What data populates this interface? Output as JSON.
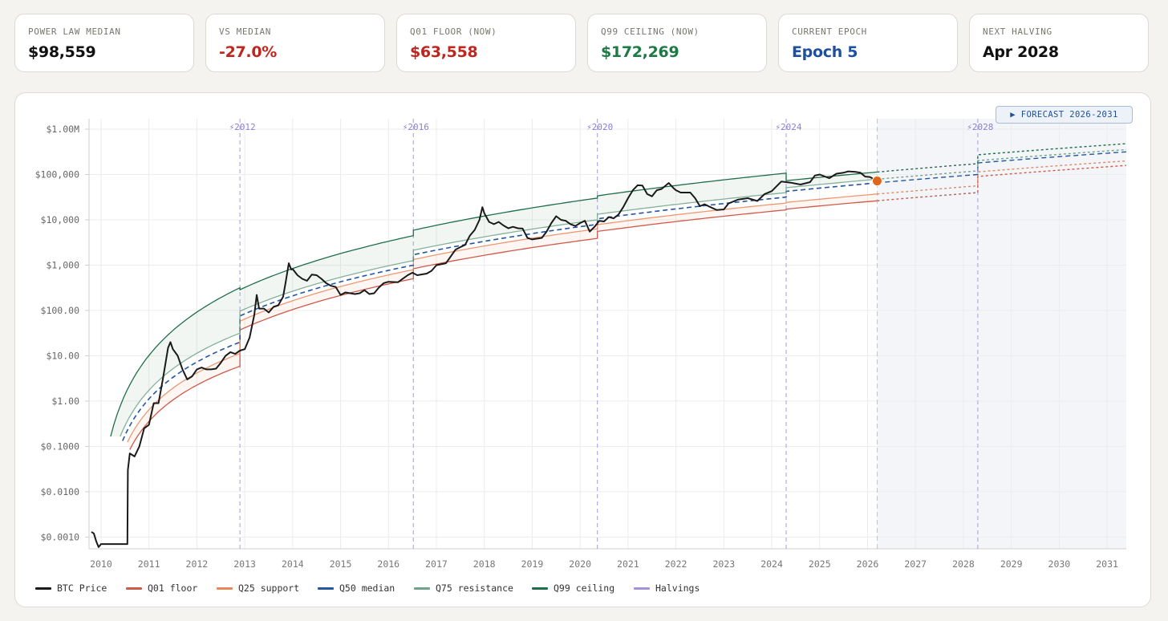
{
  "stats": [
    {
      "label": "POWER LAW MEDIAN",
      "value": "$98,559",
      "color": "#111111"
    },
    {
      "label": "VS MEDIAN",
      "value": "-27.0%",
      "color": "#c0261e"
    },
    {
      "label": "Q01 FLOOR (NOW)",
      "value": "$63,558",
      "color": "#c0261e"
    },
    {
      "label": "Q99 CEILING (NOW)",
      "value": "$172,269",
      "color": "#1e7a45"
    },
    {
      "label": "CURRENT EPOCH",
      "value": "Epoch 5",
      "color": "#1f4fa0"
    },
    {
      "label": "NEXT HALVING",
      "value": "Apr 2028",
      "color": "#111111"
    }
  ],
  "forecast_badge": "▶ FORECAST 2026-2031",
  "legend": [
    {
      "label": "BTC Price",
      "color": "#1a1a1a"
    },
    {
      "label": "Q01 floor",
      "color": "#cf5a4a"
    },
    {
      "label": "Q25 support",
      "color": "#e8875a"
    },
    {
      "label": "Q50 median",
      "color": "#2356a3"
    },
    {
      "label": "Q75 resistance",
      "color": "#6fa48a"
    },
    {
      "label": "Q99 ceiling",
      "color": "#1f6e4a"
    },
    {
      "label": "Halvings",
      "color": "#a493dc"
    }
  ],
  "chart_data": {
    "type": "line",
    "title": "",
    "xlabel": "",
    "ylabel": "",
    "y_scale": "log",
    "xlim": [
      2009.75,
      2031.4
    ],
    "ylim": [
      0.00055,
      1700000
    ],
    "x_ticks": [
      2010,
      2011,
      2012,
      2013,
      2014,
      2015,
      2016,
      2017,
      2018,
      2019,
      2020,
      2021,
      2022,
      2023,
      2024,
      2025,
      2026,
      2027,
      2028,
      2029,
      2030,
      2031
    ],
    "y_ticks": [
      {
        "value": 0.001,
        "label": "$0.0010"
      },
      {
        "value": 0.01,
        "label": "$0.0100"
      },
      {
        "value": 0.1,
        "label": "$0.1000"
      },
      {
        "value": 1,
        "label": "$1.00"
      },
      {
        "value": 10,
        "label": "$10.00"
      },
      {
        "value": 100,
        "label": "$100.00"
      },
      {
        "value": 1000,
        "label": "$1,000"
      },
      {
        "value": 10000,
        "label": "$10,000"
      },
      {
        "value": 100000,
        "label": "$100,000"
      },
      {
        "value": 1000000,
        "label": "$1.00M"
      }
    ],
    "halvings": [
      {
        "x": 2012.9,
        "label": "⚡2012"
      },
      {
        "x": 2016.52,
        "label": "⚡2016"
      },
      {
        "x": 2020.36,
        "label": "⚡2020"
      },
      {
        "x": 2024.3,
        "label": "⚡2024"
      },
      {
        "x": 2028.3,
        "label": "⚡2028"
      }
    ],
    "forecast_start": 2026.2,
    "forecast_end": 2031.4,
    "current_point": {
      "x": 2026.2,
      "y": 72000
    },
    "quantile_bands": [
      {
        "name": "Q01 floor",
        "color": "#cf5a4a",
        "params": [
          {
            "start": 2010.6,
            "end": 2012.9,
            "year0": 2010.25,
            "logP0": -2.3,
            "logP1": 0.77
          },
          {
            "start": 2012.9,
            "end": 2016.52,
            "year0": 2010.25,
            "logP0": -2.3,
            "logP1": 2.7
          },
          {
            "start": 2016.52,
            "end": 2020.36,
            "year0": 2010.25,
            "logP0": -2.3,
            "logP1": 3.59
          },
          {
            "start": 2020.36,
            "end": 2024.3,
            "year0": 2010.25,
            "logP0": -2.3,
            "logP1": 4.22
          },
          {
            "start": 2024.3,
            "end": 2028.3,
            "year0": 2010.25,
            "logP0": -2.3,
            "logP1": 4.6
          },
          {
            "start": 2028.3,
            "end": 2031.4,
            "year0": 2010.25,
            "logP0": -2.3,
            "logP1": 5.2
          }
        ]
      },
      {
        "name": "Q25 support",
        "color": "#e8875a",
        "params": [
          {
            "start": 2010.55,
            "end": 2012.9,
            "year0": 2010.2,
            "logP0": -2.2,
            "logP1": 1.05
          },
          {
            "start": 2012.9,
            "end": 2016.52,
            "year0": 2010.2,
            "logP0": -2.2,
            "logP1": 2.9
          },
          {
            "start": 2016.52,
            "end": 2020.36,
            "year0": 2010.2,
            "logP0": -2.2,
            "logP1": 3.8
          },
          {
            "start": 2020.36,
            "end": 2024.3,
            "year0": 2010.2,
            "logP0": -2.2,
            "logP1": 4.37
          },
          {
            "start": 2024.3,
            "end": 2028.3,
            "year0": 2010.2,
            "logP0": -2.2,
            "logP1": 4.75
          },
          {
            "start": 2028.3,
            "end": 2031.4,
            "year0": 2010.2,
            "logP0": -2.2,
            "logP1": 5.3
          }
        ]
      },
      {
        "name": "Q50 median",
        "color": "#2356a3",
        "params": [
          {
            "start": 2010.45,
            "end": 2012.9,
            "year0": 2010.15,
            "logP0": -2.1,
            "logP1": 1.3
          },
          {
            "start": 2012.9,
            "end": 2016.52,
            "year0": 2010.15,
            "logP0": -2.1,
            "logP1": 3.0
          },
          {
            "start": 2016.52,
            "end": 2020.36,
            "year0": 2010.15,
            "logP0": -2.1,
            "logP1": 3.9
          },
          {
            "start": 2020.36,
            "end": 2024.3,
            "year0": 2010.15,
            "logP0": -2.1,
            "logP1": 4.5
          },
          {
            "start": 2024.3,
            "end": 2028.3,
            "year0": 2010.15,
            "logP0": -2.1,
            "logP1": 5.0
          },
          {
            "start": 2028.3,
            "end": 2031.4,
            "year0": 2010.15,
            "logP0": -2.1,
            "logP1": 5.5
          }
        ]
      },
      {
        "name": "Q75 resistance",
        "color": "#6fa48a",
        "params": [
          {
            "start": 2010.4,
            "end": 2012.9,
            "year0": 2010.1,
            "logP0": -2.05,
            "logP1": 1.5
          },
          {
            "start": 2012.9,
            "end": 2016.52,
            "year0": 2010.1,
            "logP0": -2.05,
            "logP1": 3.1
          },
          {
            "start": 2016.52,
            "end": 2020.36,
            "year0": 2010.1,
            "logP0": -2.05,
            "logP1": 4.0
          },
          {
            "start": 2020.36,
            "end": 2024.3,
            "year0": 2010.1,
            "logP0": -2.05,
            "logP1": 4.6
          },
          {
            "start": 2024.3,
            "end": 2028.3,
            "year0": 2010.1,
            "logP0": -2.05,
            "logP1": 5.08
          },
          {
            "start": 2028.3,
            "end": 2031.4,
            "year0": 2010.1,
            "logP0": -2.05,
            "logP1": 5.55
          }
        ]
      },
      {
        "name": "Q99 ceiling",
        "color": "#1f6e4a",
        "params": [
          {
            "start": 2010.2,
            "end": 2012.9,
            "year0": 2010.0,
            "logP0": -2.0,
            "logP1": 2.5
          },
          {
            "start": 2012.9,
            "end": 2016.52,
            "year0": 2010.0,
            "logP0": -2.0,
            "logP1": 3.65
          },
          {
            "start": 2016.52,
            "end": 2020.36,
            "year0": 2010.0,
            "logP0": -2.0,
            "logP1": 4.48
          },
          {
            "start": 2020.36,
            "end": 2024.3,
            "year0": 2010.0,
            "logP0": -2.0,
            "logP1": 5.03
          },
          {
            "start": 2024.3,
            "end": 2028.3,
            "year0": 2010.0,
            "logP0": -2.0,
            "logP1": 5.24
          },
          {
            "start": 2028.3,
            "end": 2031.4,
            "year0": 2010.0,
            "logP0": -2.0,
            "logP1": 5.68
          }
        ]
      }
    ],
    "series": [
      {
        "name": "BTC Price",
        "color": "#1a1a1a",
        "points": [
          [
            2009.8,
            0.0013
          ],
          [
            2009.85,
            0.0012
          ],
          [
            2009.9,
            0.0008
          ],
          [
            2009.95,
            0.0006
          ],
          [
            2010.0,
            0.0007
          ],
          [
            2010.3,
            0.0007
          ],
          [
            2010.55,
            0.0007
          ],
          [
            2010.56,
            0.03
          ],
          [
            2010.6,
            0.07
          ],
          [
            2010.7,
            0.06
          ],
          [
            2010.8,
            0.1
          ],
          [
            2010.9,
            0.25
          ],
          [
            2011.0,
            0.3
          ],
          [
            2011.1,
            0.9
          ],
          [
            2011.2,
            0.9
          ],
          [
            2011.3,
            3.5
          ],
          [
            2011.4,
            15
          ],
          [
            2011.45,
            20
          ],
          [
            2011.5,
            14
          ],
          [
            2011.6,
            10
          ],
          [
            2011.7,
            5
          ],
          [
            2011.8,
            3
          ],
          [
            2011.9,
            3.5
          ],
          [
            2012.0,
            5
          ],
          [
            2012.1,
            5.5
          ],
          [
            2012.2,
            5
          ],
          [
            2012.3,
            5
          ],
          [
            2012.4,
            5.2
          ],
          [
            2012.5,
            7
          ],
          [
            2012.6,
            10
          ],
          [
            2012.7,
            12
          ],
          [
            2012.8,
            11
          ],
          [
            2012.9,
            13
          ],
          [
            2013.0,
            14
          ],
          [
            2013.1,
            25
          ],
          [
            2013.2,
            80
          ],
          [
            2013.25,
            220
          ],
          [
            2013.3,
            110
          ],
          [
            2013.4,
            110
          ],
          [
            2013.5,
            90
          ],
          [
            2013.6,
            120
          ],
          [
            2013.7,
            130
          ],
          [
            2013.8,
            200
          ],
          [
            2013.85,
            400
          ],
          [
            2013.92,
            1100
          ],
          [
            2013.97,
            800
          ],
          [
            2014.0,
            820
          ],
          [
            2014.1,
            600
          ],
          [
            2014.2,
            500
          ],
          [
            2014.3,
            450
          ],
          [
            2014.4,
            620
          ],
          [
            2014.5,
            600
          ],
          [
            2014.6,
            500
          ],
          [
            2014.7,
            400
          ],
          [
            2014.8,
            350
          ],
          [
            2014.9,
            330
          ],
          [
            2015.0,
            220
          ],
          [
            2015.1,
            250
          ],
          [
            2015.2,
            240
          ],
          [
            2015.3,
            230
          ],
          [
            2015.4,
            240
          ],
          [
            2015.5,
            280
          ],
          [
            2015.6,
            230
          ],
          [
            2015.7,
            240
          ],
          [
            2015.8,
            320
          ],
          [
            2015.9,
            400
          ],
          [
            2016.0,
            430
          ],
          [
            2016.2,
            420
          ],
          [
            2016.4,
            600
          ],
          [
            2016.5,
            680
          ],
          [
            2016.6,
            600
          ],
          [
            2016.8,
            650
          ],
          [
            2016.9,
            750
          ],
          [
            2017.0,
            1000
          ],
          [
            2017.2,
            1100
          ],
          [
            2017.4,
            2200
          ],
          [
            2017.5,
            2500
          ],
          [
            2017.6,
            2800
          ],
          [
            2017.7,
            4500
          ],
          [
            2017.8,
            6000
          ],
          [
            2017.9,
            10000
          ],
          [
            2017.96,
            19000
          ],
          [
            2018.0,
            14000
          ],
          [
            2018.1,
            9000
          ],
          [
            2018.2,
            8000
          ],
          [
            2018.3,
            9000
          ],
          [
            2018.4,
            7500
          ],
          [
            2018.5,
            6500
          ],
          [
            2018.6,
            7000
          ],
          [
            2018.7,
            6500
          ],
          [
            2018.8,
            6400
          ],
          [
            2018.9,
            4000
          ],
          [
            2019.0,
            3700
          ],
          [
            2019.2,
            4000
          ],
          [
            2019.3,
            5500
          ],
          [
            2019.4,
            8500
          ],
          [
            2019.5,
            12000
          ],
          [
            2019.6,
            10000
          ],
          [
            2019.7,
            9500
          ],
          [
            2019.8,
            8000
          ],
          [
            2019.9,
            7300
          ],
          [
            2020.0,
            8500
          ],
          [
            2020.1,
            9500
          ],
          [
            2020.2,
            5500
          ],
          [
            2020.3,
            7000
          ],
          [
            2020.4,
            9500
          ],
          [
            2020.5,
            9200
          ],
          [
            2020.6,
            11500
          ],
          [
            2020.7,
            10800
          ],
          [
            2020.8,
            13000
          ],
          [
            2020.9,
            19000
          ],
          [
            2021.0,
            30000
          ],
          [
            2021.1,
            45000
          ],
          [
            2021.2,
            58000
          ],
          [
            2021.3,
            57000
          ],
          [
            2021.4,
            37000
          ],
          [
            2021.5,
            33000
          ],
          [
            2021.6,
            45000
          ],
          [
            2021.7,
            48000
          ],
          [
            2021.85,
            65000
          ],
          [
            2021.95,
            50000
          ],
          [
            2022.0,
            45000
          ],
          [
            2022.1,
            40000
          ],
          [
            2022.3,
            40000
          ],
          [
            2022.4,
            30000
          ],
          [
            2022.5,
            20000
          ],
          [
            2022.6,
            22000
          ],
          [
            2022.7,
            19500
          ],
          [
            2022.85,
            16500
          ],
          [
            2023.0,
            17000
          ],
          [
            2023.1,
            23000
          ],
          [
            2023.3,
            28000
          ],
          [
            2023.5,
            30000
          ],
          [
            2023.7,
            26000
          ],
          [
            2023.85,
            37000
          ],
          [
            2024.0,
            43000
          ],
          [
            2024.15,
            62000
          ],
          [
            2024.2,
            70000
          ],
          [
            2024.4,
            66000
          ],
          [
            2024.6,
            60000
          ],
          [
            2024.8,
            68000
          ],
          [
            2024.9,
            95000
          ],
          [
            2025.0,
            100000
          ],
          [
            2025.2,
            83000
          ],
          [
            2025.35,
            104000
          ],
          [
            2025.5,
            110000
          ],
          [
            2025.6,
            117000
          ],
          [
            2025.75,
            114000
          ],
          [
            2025.85,
            110000
          ],
          [
            2025.95,
            90000
          ],
          [
            2026.05,
            88000
          ],
          [
            2026.2,
            72000
          ]
        ]
      }
    ]
  }
}
